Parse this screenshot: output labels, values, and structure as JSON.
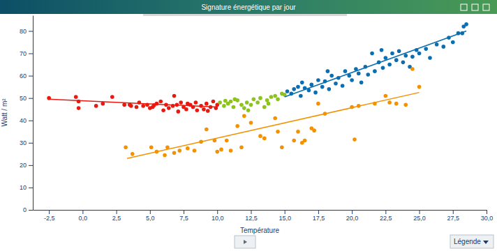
{
  "chart_data": {
    "type": "scatter",
    "title": "Signature énergétique par jour",
    "x_label": "Température",
    "y_label": "Watt / m²",
    "xlim": [
      -3.7,
      30
    ],
    "xticks": [
      {
        "value": -2.5,
        "label": "-2,5"
      },
      {
        "value": 0,
        "label": "0,0"
      },
      {
        "value": 2.5,
        "label": "2,5"
      },
      {
        "value": 5,
        "label": "5,0"
      },
      {
        "value": 7.5,
        "label": "7,5"
      },
      {
        "value": 10,
        "label": "10,0"
      },
      {
        "value": 12.5,
        "label": "12,5"
      },
      {
        "value": 15,
        "label": "15,0"
      },
      {
        "value": 17.5,
        "label": "17,5"
      },
      {
        "value": 20,
        "label": "20,0"
      },
      {
        "value": 22.5,
        "label": "22,5"
      },
      {
        "value": 25,
        "label": "25,0"
      },
      {
        "value": 27.5,
        "label": "27,5"
      },
      {
        "value": 30,
        "label": "30,0"
      }
    ],
    "ylim": [
      0,
      87
    ],
    "yticks": [
      0,
      10,
      20,
      30,
      40,
      50,
      60,
      70,
      80
    ],
    "grid": false,
    "series": [
      {
        "type": "scatter",
        "color": "#e8190f",
        "x": [
          -2.5,
          -0.5,
          -0.3,
          -0.3,
          1.0,
          1.5,
          2.2,
          3.1,
          3.6,
          4.0,
          4.2,
          4.5,
          4.8,
          5.0,
          5.2,
          5.5,
          5.8,
          6.0,
          6.2,
          6.4,
          6.7,
          7.0,
          7.1,
          7.3,
          7.5,
          7.7,
          8.0,
          8.2,
          8.4,
          8.5,
          8.8,
          9.0,
          9.2,
          9.5,
          9.7,
          9.9,
          10.0,
          6.8,
          3.5,
          5.3,
          7.8,
          9.3
        ],
        "values": [
          50,
          50.5,
          48.5,
          45.5,
          46.5,
          47.5,
          50.5,
          47,
          46.5,
          46,
          48,
          46.5,
          47,
          45.5,
          46,
          47.5,
          48.5,
          44.5,
          47,
          45.5,
          46.5,
          47,
          44,
          48,
          46,
          45,
          47,
          46,
          48,
          44.5,
          46.5,
          45,
          47.5,
          46,
          48.5,
          45.5,
          47,
          51,
          47,
          46.8,
          47.5,
          44.3
        ]
      },
      {
        "type": "scatter",
        "color": "#8dc21f",
        "x": [
          10.2,
          10.5,
          10.8,
          11.0,
          11.2,
          11.5,
          11.8,
          12.0,
          12.2,
          12.5,
          12.7,
          13.0,
          13.2,
          13.5,
          13.7,
          14.0,
          14.3,
          14.5,
          14.8,
          15.0,
          12.3,
          11.3,
          13.8,
          10.6
        ],
        "values": [
          48,
          46.5,
          47.5,
          48.5,
          46,
          49,
          47,
          45.5,
          48,
          47,
          49.5,
          48,
          50,
          46,
          49,
          50.5,
          51,
          49.5,
          52,
          51.5,
          44.5,
          49.5,
          47.5,
          48.8
        ]
      },
      {
        "type": "scatter",
        "color": "#0a6eb0",
        "x": [
          15.2,
          15.5,
          15.7,
          16.0,
          16.2,
          16.5,
          16.8,
          17.0,
          17.3,
          17.5,
          17.8,
          18.0,
          18.3,
          18.5,
          18.8,
          19.0,
          19.3,
          19.5,
          19.8,
          20.0,
          20.3,
          20.5,
          20.7,
          21.0,
          21.2,
          21.5,
          21.7,
          22.0,
          22.3,
          22.5,
          22.8,
          23.0,
          23.3,
          23.5,
          23.8,
          24.0,
          24.3,
          24.5,
          24.8,
          25.0,
          25.5,
          25.8,
          26.3,
          26.8,
          27.2,
          27.5,
          27.9,
          28.3,
          28.5,
          28.2,
          18.2,
          22.2,
          16.3
        ],
        "values": [
          53,
          52,
          54,
          55,
          51,
          54.5,
          53.5,
          56,
          52.5,
          58,
          55,
          57.5,
          54,
          60,
          56.5,
          59,
          55.5,
          62,
          60,
          58,
          63,
          61,
          57,
          64,
          60.5,
          70,
          62,
          66,
          63.5,
          68,
          65,
          70,
          67,
          71,
          66,
          69,
          64,
          68.5,
          71.5,
          70,
          72,
          68,
          74,
          73,
          77,
          75,
          79,
          82,
          83,
          79,
          62,
          71.5,
          57
        ]
      },
      {
        "type": "scatter",
        "color": "#f39200",
        "x": [
          3.2,
          3.7,
          5.1,
          5.5,
          6.1,
          6.3,
          6.8,
          7.2,
          7.8,
          8.3,
          8.8,
          9.2,
          9.8,
          10.0,
          10.3,
          10.7,
          11.0,
          11.5,
          11.8,
          12.5,
          13.5,
          14.3,
          14.5,
          14.8,
          15.7,
          16.0,
          16.5,
          17.0,
          17.5,
          18.0,
          20.0,
          20.2,
          20.5,
          21.7,
          22.8,
          22.5,
          23.3,
          24.0,
          24.5,
          25.0,
          16.3,
          17.2,
          13.2,
          12.0
        ],
        "values": [
          28,
          25,
          28,
          26,
          24.5,
          28,
          25.5,
          26.5,
          27.5,
          26.5,
          30.5,
          36,
          31,
          26,
          27,
          31,
          26.5,
          37.5,
          28,
          39,
          32,
          41,
          35,
          28,
          31,
          35,
          31,
          36.5,
          47.5,
          43,
          46,
          31.5,
          46.5,
          47.5,
          48,
          51,
          47.5,
          47,
          63,
          55,
          30,
          35.5,
          33,
          42
        ]
      },
      {
        "type": "line",
        "color": "#e8190f",
        "x": [
          -2.5,
          10.0
        ],
        "values": [
          49.5,
          46
        ]
      },
      {
        "type": "line",
        "color": "#0a6eb0",
        "x": [
          15.0,
          28.5
        ],
        "values": [
          50.5,
          80
        ]
      },
      {
        "type": "line",
        "color": "#f39200",
        "x": [
          3.3,
          25.0
        ],
        "values": [
          23,
          52.5
        ]
      }
    ]
  },
  "window": {
    "legend_button": "Légende"
  }
}
